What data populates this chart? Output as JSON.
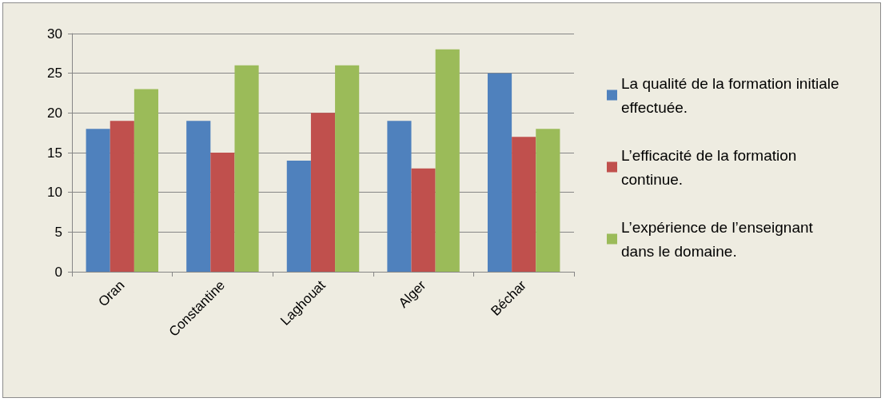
{
  "chart_data": {
    "type": "bar",
    "categories": [
      "Oran",
      "Constantine",
      "Laghouat",
      "Alger",
      "Béchar"
    ],
    "series": [
      {
        "name": "La qualité de la formation initiale effectuée.",
        "color": "#4f81bd",
        "values": [
          18,
          19,
          14,
          19,
          25
        ]
      },
      {
        "name": "L’efficacité de la formation continue.",
        "color": "#c0504d",
        "values": [
          19,
          15,
          20,
          13,
          17
        ]
      },
      {
        "name": "L’expérience de l’enseignant dans le domaine.",
        "color": "#9bbb59",
        "values": [
          23,
          26,
          26,
          28,
          18
        ]
      }
    ],
    "ylim": [
      0,
      30
    ],
    "yticks": [
      0,
      5,
      10,
      15,
      20,
      25,
      30
    ],
    "grid": "y",
    "legend": "right"
  }
}
